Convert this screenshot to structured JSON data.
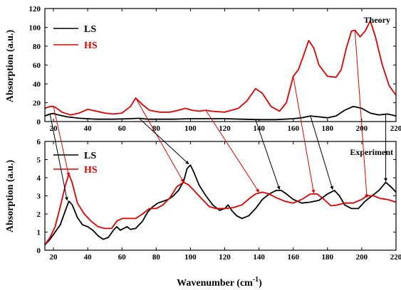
{
  "chart_data": [
    {
      "type": "line",
      "panel_label": "Theory",
      "xlabel": "",
      "ylabel": "Absorption (a.u.)",
      "xlim": [
        15,
        220
      ],
      "ylim": [
        0,
        120
      ],
      "x_ticks": [
        20,
        40,
        60,
        80,
        100,
        120,
        140,
        160,
        180,
        200,
        220
      ],
      "y_ticks": [
        0,
        20,
        40,
        60,
        80,
        100,
        120
      ],
      "legend": "top-left",
      "series": [
        {
          "name": "LS",
          "color": "#000000",
          "points": [
            [
              15,
              6
            ],
            [
              18,
              8
            ],
            [
              20,
              8.5
            ],
            [
              23,
              7
            ],
            [
              28,
              5
            ],
            [
              35,
              3.5
            ],
            [
              45,
              2.5
            ],
            [
              55,
              2.5
            ],
            [
              65,
              3
            ],
            [
              70,
              3.5
            ],
            [
              75,
              2.5
            ],
            [
              90,
              2.5
            ],
            [
              100,
              3
            ],
            [
              110,
              3
            ],
            [
              120,
              3
            ],
            [
              130,
              2.5
            ],
            [
              140,
              2
            ],
            [
              150,
              2
            ],
            [
              160,
              3
            ],
            [
              165,
              4
            ],
            [
              170,
              6
            ],
            [
              175,
              5
            ],
            [
              180,
              4
            ],
            [
              185,
              6
            ],
            [
              190,
              12
            ],
            [
              195,
              16
            ],
            [
              200,
              14
            ],
            [
              205,
              9
            ],
            [
              210,
              7
            ],
            [
              215,
              8
            ],
            [
              220,
              6
            ]
          ]
        },
        {
          "name": "HS",
          "color": "#e00000",
          "points": [
            [
              15,
              14
            ],
            [
              18,
              16
            ],
            [
              20,
              16
            ],
            [
              22,
              14
            ],
            [
              25,
              10
            ],
            [
              30,
              7
            ],
            [
              35,
              9
            ],
            [
              40,
              13
            ],
            [
              45,
              11
            ],
            [
              50,
              9
            ],
            [
              55,
              8
            ],
            [
              60,
              9
            ],
            [
              65,
              16
            ],
            [
              68,
              25
            ],
            [
              72,
              18
            ],
            [
              76,
              12
            ],
            [
              82,
              10
            ],
            [
              88,
              10
            ],
            [
              93,
              12
            ],
            [
              97,
              14
            ],
            [
              101,
              12
            ],
            [
              105,
              11
            ],
            [
              109,
              12
            ],
            [
              112,
              11
            ],
            [
              120,
              10
            ],
            [
              128,
              14
            ],
            [
              133,
              22
            ],
            [
              138,
              35
            ],
            [
              142,
              30
            ],
            [
              147,
              16
            ],
            [
              152,
              11
            ],
            [
              156,
              20
            ],
            [
              160,
              48
            ],
            [
              163,
              55
            ],
            [
              166,
              70
            ],
            [
              169,
              86
            ],
            [
              172,
              78
            ],
            [
              175,
              60
            ],
            [
              180,
              48
            ],
            [
              185,
              47
            ],
            [
              188,
              55
            ],
            [
              191,
              78
            ],
            [
              194,
              96
            ],
            [
              196,
              97
            ],
            [
              199,
              90
            ],
            [
              202,
              96
            ],
            [
              205,
              107
            ],
            [
              208,
              90
            ],
            [
              212,
              60
            ],
            [
              216,
              38
            ],
            [
              220,
              28
            ]
          ]
        }
      ]
    },
    {
      "type": "line",
      "panel_label": "Experiment",
      "xlabel": "Wavenumber (cm-1)",
      "ylabel": "Absorption (a.u.)",
      "xlim": [
        15,
        220
      ],
      "ylim": [
        0,
        6
      ],
      "x_ticks": [
        20,
        40,
        60,
        80,
        100,
        120,
        140,
        160,
        180,
        200,
        220
      ],
      "y_ticks": [
        0,
        1,
        2,
        3,
        4,
        5,
        6
      ],
      "legend": "top-left",
      "series": [
        {
          "name": "LS",
          "color": "#000000",
          "points": [
            [
              15,
              0.3
            ],
            [
              18,
              0.6
            ],
            [
              21,
              1.0
            ],
            [
              24,
              1.4
            ],
            [
              27,
              2.2
            ],
            [
              29,
              2.7
            ],
            [
              31,
              2.5
            ],
            [
              34,
              1.8
            ],
            [
              37,
              1.4
            ],
            [
              40,
              1.3
            ],
            [
              43,
              1.1
            ],
            [
              46,
              0.8
            ],
            [
              49,
              0.6
            ],
            [
              52,
              0.7
            ],
            [
              55,
              1.1
            ],
            [
              57,
              1.3
            ],
            [
              59,
              1.1
            ],
            [
              61,
              1.2
            ],
            [
              63,
              1.3
            ],
            [
              65,
              1.15
            ],
            [
              68,
              1.2
            ],
            [
              72,
              1.6
            ],
            [
              75,
              2.1
            ],
            [
              78,
              2.4
            ],
            [
              81,
              2.6
            ],
            [
              84,
              2.7
            ],
            [
              87,
              2.8
            ],
            [
              90,
              3.0
            ],
            [
              93,
              3.3
            ],
            [
              96,
              3.8
            ],
            [
              98,
              4.5
            ],
            [
              100,
              4.7
            ],
            [
              102,
              4.3
            ],
            [
              105,
              3.6
            ],
            [
              109,
              3.0
            ],
            [
              113,
              2.5
            ],
            [
              117,
              2.2
            ],
            [
              120,
              2.3
            ],
            [
              122,
              2.5
            ],
            [
              124,
              2.2
            ],
            [
              127,
              1.9
            ],
            [
              130,
              1.75
            ],
            [
              134,
              1.9
            ],
            [
              138,
              2.3
            ],
            [
              142,
              2.8
            ],
            [
              146,
              3.1
            ],
            [
              150,
              3.3
            ],
            [
              153,
              3.3
            ],
            [
              156,
              3.1
            ],
            [
              160,
              2.8
            ],
            [
              165,
              2.6
            ],
            [
              170,
              2.65
            ],
            [
              175,
              2.75
            ],
            [
              180,
              3.1
            ],
            [
              184,
              3.3
            ],
            [
              187,
              3.0
            ],
            [
              190,
              2.5
            ],
            [
              194,
              2.3
            ],
            [
              198,
              2.3
            ],
            [
              202,
              2.7
            ],
            [
              206,
              3.0
            ],
            [
              210,
              3.3
            ],
            [
              214,
              3.75
            ],
            [
              217,
              3.5
            ],
            [
              220,
              3.2
            ]
          ]
        },
        {
          "name": "HS",
          "color": "#e00000",
          "points": [
            [
              15,
              0.3
            ],
            [
              18,
              0.7
            ],
            [
              21,
              1.3
            ],
            [
              24,
              2.4
            ],
            [
              27,
              3.6
            ],
            [
              29,
              4.2
            ],
            [
              31,
              3.7
            ],
            [
              34,
              2.6
            ],
            [
              38,
              2.0
            ],
            [
              42,
              1.6
            ],
            [
              46,
              1.3
            ],
            [
              50,
              1.2
            ],
            [
              54,
              1.2
            ],
            [
              57,
              1.6
            ],
            [
              60,
              1.75
            ],
            [
              64,
              1.75
            ],
            [
              68,
              1.75
            ],
            [
              72,
              2.0
            ],
            [
              76,
              2.3
            ],
            [
              80,
              2.3
            ],
            [
              84,
              2.5
            ],
            [
              88,
              2.9
            ],
            [
              92,
              3.5
            ],
            [
              96,
              3.75
            ],
            [
              99,
              3.6
            ],
            [
              103,
              3.2
            ],
            [
              107,
              2.8
            ],
            [
              111,
              2.4
            ],
            [
              115,
              2.3
            ],
            [
              120,
              2.3
            ],
            [
              125,
              2.35
            ],
            [
              130,
              2.5
            ],
            [
              135,
              2.9
            ],
            [
              138,
              3.1
            ],
            [
              142,
              3.2
            ],
            [
              146,
              3.1
            ],
            [
              150,
              2.9
            ],
            [
              155,
              2.7
            ],
            [
              160,
              2.6
            ],
            [
              165,
              2.8
            ],
            [
              170,
              3.1
            ],
            [
              174,
              3.1
            ],
            [
              178,
              2.8
            ],
            [
              182,
              2.45
            ],
            [
              186,
              2.5
            ],
            [
              190,
              2.6
            ],
            [
              195,
              2.6
            ],
            [
              200,
              2.8
            ],
            [
              203,
              3.0
            ],
            [
              207,
              3.0
            ],
            [
              211,
              2.85
            ],
            [
              215,
              2.8
            ],
            [
              220,
              2.65
            ]
          ]
        }
      ]
    }
  ],
  "ui": {
    "top_ylabel": "Absorption (a.u.)",
    "bottom_ylabel": "Absorption (a.u.)",
    "xlabel_main": "Wavenumber (cm",
    "xlabel_sup": "-1",
    "xlabel_close": ")",
    "legend_ls": "LS",
    "legend_hs": "HS",
    "legend_ls_b": "LS",
    "legend_hs_b": "HS",
    "label_theory": "Theory",
    "label_experiment": "Experiment"
  },
  "arrows": [
    {
      "color": "#000000",
      "from_x": 18,
      "from_y_top": 8,
      "to_x": 28,
      "to_y_bottom": 2.75
    },
    {
      "color": "#e00000",
      "from_x": 20,
      "from_y_top": 16,
      "to_x": 29,
      "to_y_bottom": 4.1
    },
    {
      "color": "#e00000",
      "from_x": 68,
      "from_y_top": 25,
      "to_x": 96,
      "to_y_bottom": 3.75
    },
    {
      "color": "#000000",
      "from_x": 70,
      "from_y_top": 3.5,
      "to_x": 99,
      "to_y_bottom": 4.75
    },
    {
      "color": "#e00000",
      "from_x": 109,
      "from_y_top": 12,
      "to_x": 140,
      "to_y_bottom": 3.2
    },
    {
      "color": "#000000",
      "from_x": 138,
      "from_y_top": 2,
      "to_x": 152,
      "to_y_bottom": 3.35
    },
    {
      "color": "#e00000",
      "from_x": 160,
      "from_y_top": 48,
      "to_x": 172,
      "to_y_bottom": 3.15
    },
    {
      "color": "#000000",
      "from_x": 170,
      "from_y_top": 6,
      "to_x": 183,
      "to_y_bottom": 3.35
    },
    {
      "color": "#e00000",
      "from_x": 196,
      "from_y_top": 97,
      "to_x": 203,
      "to_y_bottom": 2.9
    },
    {
      "color": "#000000",
      "from_x": 214,
      "from_y_top": 8,
      "to_x": 214,
      "to_y_bottom": 3.8
    }
  ]
}
